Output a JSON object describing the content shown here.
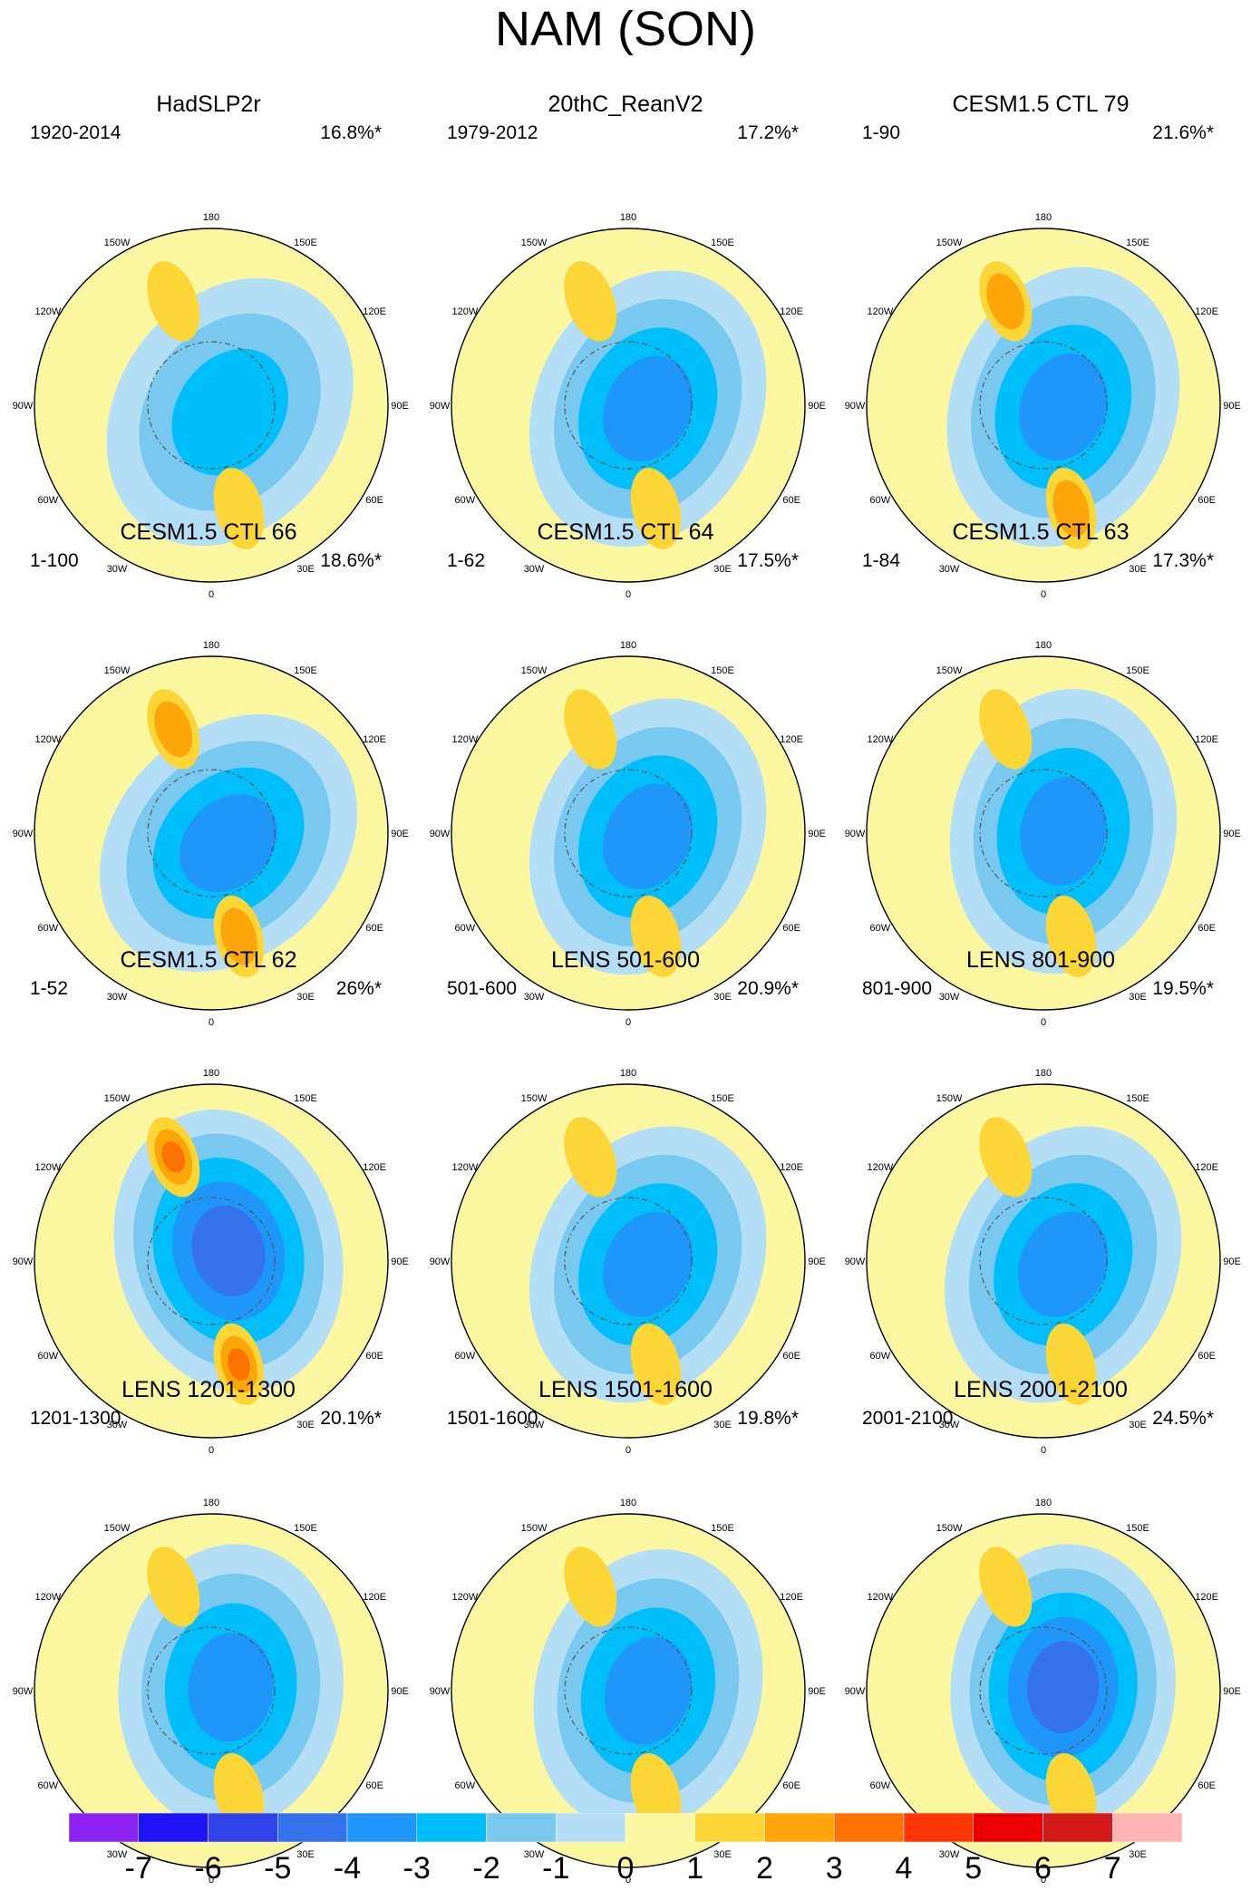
{
  "title": "NAM (SON)",
  "chart_data": {
    "type": "polar-contour-maps",
    "variable": "NAM sea level pressure pattern, SON",
    "projection": "north polar stereographic",
    "lon_labels": [
      "180",
      "150E",
      "120E",
      "90E",
      "60E",
      "30E",
      "0",
      "30W",
      "60W",
      "90W",
      "120W",
      "150W"
    ],
    "contour_levels": [
      -7,
      -6,
      -5,
      -4,
      -3,
      -2,
      -1,
      0,
      1,
      2,
      3,
      4,
      5,
      6,
      7
    ],
    "colorbar_labels": [
      "-7",
      "-6",
      "-5",
      "-4",
      "-3",
      "-2",
      "-1",
      "0",
      "1",
      "2",
      "3",
      "4",
      "5",
      "6",
      "7"
    ],
    "colors": [
      "#8a23f0",
      "#1e14f5",
      "#3043e9",
      "#3573ec",
      "#1e96fa",
      "#00befa",
      "#78c8f0",
      "#b4def6",
      "#fbf7a0",
      "#fcd537",
      "#fca60c",
      "#fc7304",
      "#fc3604",
      "#ea0202",
      "#d21a1a",
      "#fcb4b4"
    ],
    "panels": [
      {
        "title": "HadSLP2r",
        "period": "1920-2014",
        "variance": "16.8%*",
        "min_level": -3,
        "max_level": 2,
        "center_lon": 70
      },
      {
        "title": "20thC_ReanV2",
        "period": "1979-2012",
        "variance": "17.2%*",
        "min_level": -4,
        "max_level": 2,
        "center_lon": 80
      },
      {
        "title": "CESM1.5 CTL 79",
        "period": "1-90",
        "variance": "21.6%*",
        "min_level": -4,
        "max_level": 3,
        "center_lon": 85
      },
      {
        "title": "CESM1.5 CTL 66",
        "period": "1-100",
        "variance": "18.6%*",
        "min_level": -4,
        "max_level": 3,
        "center_lon": 60
      },
      {
        "title": "CESM1.5 CTL 64",
        "period": "1-62",
        "variance": "17.5%*",
        "min_level": -4,
        "max_level": 2,
        "center_lon": 80
      },
      {
        "title": "CESM1.5 CTL 63",
        "period": "1-84",
        "variance": "17.3%*",
        "min_level": -4,
        "max_level": 2,
        "center_lon": 95
      },
      {
        "title": "CESM1.5 CTL 62",
        "period": "1-52",
        "variance": "26%*",
        "min_level": -5,
        "max_level": 4,
        "center_lon": 120
      },
      {
        "title": "LENS 501-600",
        "period": "501-600",
        "variance": "20.9%*",
        "min_level": -4,
        "max_level": 2,
        "center_lon": 80
      },
      {
        "title": "LENS 801-900",
        "period": "801-900",
        "variance": "19.5%*",
        "min_level": -4,
        "max_level": 2,
        "center_lon": 80
      },
      {
        "title": "LENS 1201-1300",
        "period": "1201-1300",
        "variance": "20.1%*",
        "min_level": -4,
        "max_level": 2,
        "center_lon": 100
      },
      {
        "title": "LENS 1501-1600",
        "period": "1501-1600",
        "variance": "19.8%*",
        "min_level": -4,
        "max_level": 2,
        "center_lon": 90
      },
      {
        "title": "LENS 2001-2100",
        "period": "2001-2100",
        "variance": "24.5%*",
        "min_level": -5,
        "max_level": 2,
        "center_lon": 100
      }
    ]
  }
}
